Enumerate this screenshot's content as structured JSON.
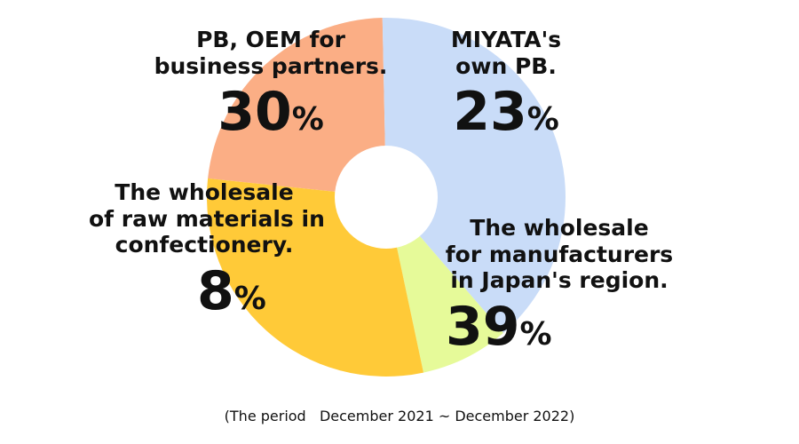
{
  "chart_data": {
    "type": "pie",
    "slices": [
      {
        "label_lines": [
          "MIYATA's",
          "own PB."
        ],
        "value": 23,
        "color": "#FBAE85"
      },
      {
        "label_lines": [
          "The wholesale",
          "for manufacturers",
          "in Japan's region."
        ],
        "value": 39,
        "color": "#C9DCF8"
      },
      {
        "label_lines": [
          "The wholesale",
          "of raw materials in",
          "confectionery."
        ],
        "value": 8,
        "color": "#E6FA99"
      },
      {
        "label_lines": [
          "PB, OEM for",
          "business partners."
        ],
        "value": 30,
        "color": "#FFCA38"
      }
    ],
    "value_suffix": "%",
    "donut_hole": true,
    "footnote": "(The period   December 2021 ~ December 2022)"
  }
}
